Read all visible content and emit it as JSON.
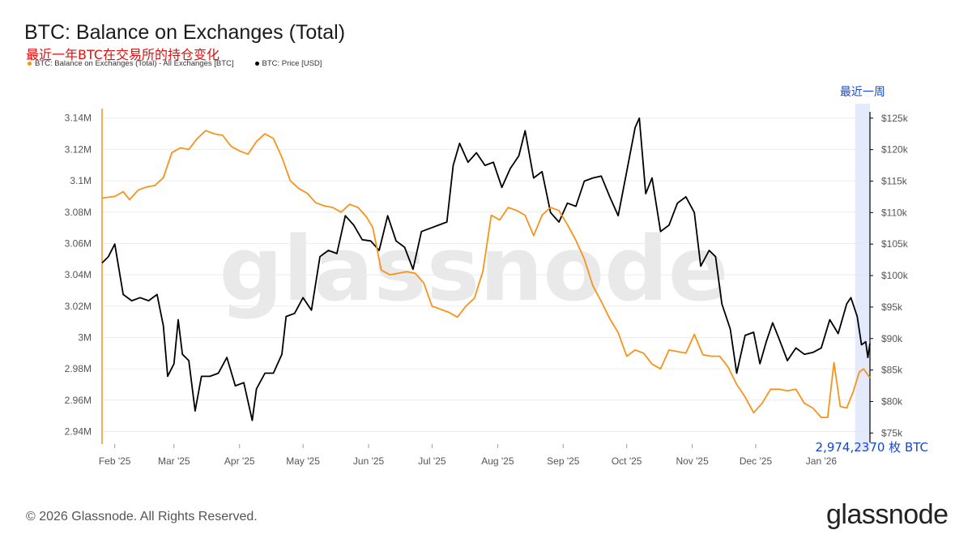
{
  "header": {
    "title": "BTC: Balance on Exchanges (Total)",
    "subtitle": "最近一年BTC在交易所的持仓变化"
  },
  "legend": [
    {
      "label": "BTC: Balance on Exchanges (Total) - All Exchanges [BTC]",
      "color": "#f7931a"
    },
    {
      "label": "BTC: Price [USD]",
      "color": "#000000"
    }
  ],
  "annotations": {
    "week_label": "最近一周",
    "latest_balance": "2,974,2370 枚 BTC",
    "watermark": "glassnode"
  },
  "footer": {
    "copyright": "© 2026 Glassnode. All Rights Reserved.",
    "brand": "glassnode"
  },
  "chart_data": {
    "type": "line",
    "title": "BTC: Balance on Exchanges (Total)",
    "x_tick_labels": [
      "Feb '25",
      "Mar '25",
      "Apr '25",
      "May '25",
      "Jun '25",
      "Jul '25",
      "Aug '25",
      "Sep '25",
      "Oct '25",
      "Nov '25",
      "Dec '25",
      "Jan '26"
    ],
    "y_left_tick_labels": [
      "3.14M",
      "3.12M",
      "3.1M",
      "3.08M",
      "3.06M",
      "3.04M",
      "3.02M",
      "3M",
      "2.98M",
      "2.96M",
      "2.94M"
    ],
    "y_left_ticks": [
      3140000,
      3120000,
      3100000,
      3080000,
      3060000,
      3040000,
      3020000,
      3000000,
      2980000,
      2960000,
      2940000
    ],
    "y_left_range": [
      2933000,
      3144000
    ],
    "y_right_tick_labels": [
      "$125k",
      "$120k",
      "$115k",
      "$110k",
      "$105k",
      "$100k",
      "$95k",
      "$90k",
      "$85k",
      "$80k",
      "$75k"
    ],
    "y_right_ticks": [
      125000,
      120000,
      115000,
      110000,
      105000,
      100000,
      95000,
      90000,
      85000,
      80000,
      75000
    ],
    "y_right_range": [
      73500,
      126000
    ],
    "x_range": [
      "2025-01-26",
      "2026-01-24"
    ],
    "highlight_range": [
      "2026-01-17",
      "2026-01-24"
    ],
    "series": [
      {
        "name": "BTC: Balance on Exchanges (Total) - All Exchanges [BTC]",
        "axis": "left",
        "color": "#f7931a",
        "points": [
          [
            "2025-01-26",
            3089000
          ],
          [
            "2025-02-01",
            3090000
          ],
          [
            "2025-02-05",
            3093000
          ],
          [
            "2025-02-08",
            3088000
          ],
          [
            "2025-02-12",
            3094000
          ],
          [
            "2025-02-16",
            3096000
          ],
          [
            "2025-02-20",
            3097000
          ],
          [
            "2025-02-24",
            3102000
          ],
          [
            "2025-02-28",
            3118000
          ],
          [
            "2025-03-04",
            3121000
          ],
          [
            "2025-03-08",
            3120000
          ],
          [
            "2025-03-12",
            3127000
          ],
          [
            "2025-03-16",
            3132000
          ],
          [
            "2025-03-20",
            3130000
          ],
          [
            "2025-03-24",
            3129000
          ],
          [
            "2025-03-28",
            3122000
          ],
          [
            "2025-04-01",
            3119000
          ],
          [
            "2025-04-05",
            3117000
          ],
          [
            "2025-04-09",
            3125000
          ],
          [
            "2025-04-13",
            3130000
          ],
          [
            "2025-04-17",
            3127000
          ],
          [
            "2025-04-21",
            3115000
          ],
          [
            "2025-04-25",
            3100000
          ],
          [
            "2025-04-29",
            3095000
          ],
          [
            "2025-05-03",
            3092000
          ],
          [
            "2025-05-07",
            3086000
          ],
          [
            "2025-05-11",
            3084000
          ],
          [
            "2025-05-15",
            3083000
          ],
          [
            "2025-05-19",
            3080000
          ],
          [
            "2025-05-23",
            3085000
          ],
          [
            "2025-05-27",
            3083000
          ],
          [
            "2025-05-31",
            3077000
          ],
          [
            "2025-06-03",
            3070000
          ],
          [
            "2025-06-07",
            3043000
          ],
          [
            "2025-06-11",
            3040000
          ],
          [
            "2025-06-15",
            3041000
          ],
          [
            "2025-06-19",
            3042000
          ],
          [
            "2025-06-23",
            3041000
          ],
          [
            "2025-06-27",
            3035000
          ],
          [
            "2025-07-01",
            3020000
          ],
          [
            "2025-07-05",
            3018000
          ],
          [
            "2025-07-09",
            3016000
          ],
          [
            "2025-07-13",
            3013000
          ],
          [
            "2025-07-17",
            3020000
          ],
          [
            "2025-07-21",
            3025000
          ],
          [
            "2025-07-25",
            3042000
          ],
          [
            "2025-07-29",
            3078000
          ],
          [
            "2025-08-02",
            3075000
          ],
          [
            "2025-08-06",
            3083000
          ],
          [
            "2025-08-10",
            3081000
          ],
          [
            "2025-08-14",
            3078000
          ],
          [
            "2025-08-18",
            3065000
          ],
          [
            "2025-08-22",
            3078000
          ],
          [
            "2025-08-26",
            3083000
          ],
          [
            "2025-08-30",
            3081000
          ],
          [
            "2025-09-03",
            3072000
          ],
          [
            "2025-09-07",
            3062000
          ],
          [
            "2025-09-11",
            3050000
          ],
          [
            "2025-09-15",
            3033000
          ],
          [
            "2025-09-19",
            3023000
          ],
          [
            "2025-09-23",
            3012000
          ],
          [
            "2025-09-27",
            3003000
          ],
          [
            "2025-10-01",
            2988000
          ],
          [
            "2025-10-05",
            2992000
          ],
          [
            "2025-10-09",
            2990000
          ],
          [
            "2025-10-13",
            2983000
          ],
          [
            "2025-10-17",
            2980000
          ],
          [
            "2025-10-21",
            2992000
          ],
          [
            "2025-10-25",
            2991000
          ],
          [
            "2025-10-29",
            2990000
          ],
          [
            "2025-11-02",
            3002000
          ],
          [
            "2025-11-06",
            2989000
          ],
          [
            "2025-11-10",
            2988000
          ],
          [
            "2025-11-14",
            2988000
          ],
          [
            "2025-11-18",
            2981000
          ],
          [
            "2025-11-22",
            2970000
          ],
          [
            "2025-11-26",
            2962000
          ],
          [
            "2025-11-30",
            2952000
          ],
          [
            "2025-12-04",
            2958000
          ],
          [
            "2025-12-08",
            2967000
          ],
          [
            "2025-12-12",
            2967000
          ],
          [
            "2025-12-16",
            2966000
          ],
          [
            "2025-12-20",
            2967000
          ],
          [
            "2025-12-24",
            2958000
          ],
          [
            "2025-12-28",
            2955000
          ],
          [
            "2026-01-01",
            2949000
          ],
          [
            "2026-01-04",
            2949000
          ],
          [
            "2026-01-07",
            2984000
          ],
          [
            "2026-01-10",
            2956000
          ],
          [
            "2026-01-13",
            2955000
          ],
          [
            "2026-01-16",
            2965000
          ],
          [
            "2026-01-19",
            2978000
          ],
          [
            "2026-01-21",
            2980000
          ],
          [
            "2026-01-24",
            2974237
          ]
        ]
      },
      {
        "name": "BTC: Price [USD]",
        "axis": "right",
        "color": "#000000",
        "points": [
          [
            "2025-01-26",
            102000
          ],
          [
            "2025-01-29",
            103000
          ],
          [
            "2025-02-01",
            105000
          ],
          [
            "2025-02-05",
            97000
          ],
          [
            "2025-02-09",
            96000
          ],
          [
            "2025-02-13",
            96500
          ],
          [
            "2025-02-17",
            96000
          ],
          [
            "2025-02-21",
            97000
          ],
          [
            "2025-02-24",
            92000
          ],
          [
            "2025-02-26",
            84000
          ],
          [
            "2025-03-01",
            86000
          ],
          [
            "2025-03-03",
            93000
          ],
          [
            "2025-03-05",
            87500
          ],
          [
            "2025-03-08",
            86500
          ],
          [
            "2025-03-11",
            78500
          ],
          [
            "2025-03-14",
            84000
          ],
          [
            "2025-03-18",
            84000
          ],
          [
            "2025-03-22",
            84500
          ],
          [
            "2025-03-26",
            87000
          ],
          [
            "2025-03-30",
            82500
          ],
          [
            "2025-04-03",
            83000
          ],
          [
            "2025-04-07",
            77000
          ],
          [
            "2025-04-09",
            82000
          ],
          [
            "2025-04-13",
            84500
          ],
          [
            "2025-04-17",
            84500
          ],
          [
            "2025-04-21",
            87500
          ],
          [
            "2025-04-23",
            93500
          ],
          [
            "2025-04-27",
            94000
          ],
          [
            "2025-05-01",
            96500
          ],
          [
            "2025-05-05",
            94500
          ],
          [
            "2025-05-09",
            103000
          ],
          [
            "2025-05-13",
            104000
          ],
          [
            "2025-05-17",
            103500
          ],
          [
            "2025-05-21",
            109500
          ],
          [
            "2025-05-25",
            108000
          ],
          [
            "2025-05-29",
            105700
          ],
          [
            "2025-06-02",
            105500
          ],
          [
            "2025-06-06",
            104000
          ],
          [
            "2025-06-10",
            109500
          ],
          [
            "2025-06-14",
            105500
          ],
          [
            "2025-06-18",
            104500
          ],
          [
            "2025-06-22",
            101000
          ],
          [
            "2025-06-26",
            107000
          ],
          [
            "2025-06-30",
            107500
          ],
          [
            "2025-07-04",
            108000
          ],
          [
            "2025-07-08",
            108500
          ],
          [
            "2025-07-11",
            117500
          ],
          [
            "2025-07-14",
            121000
          ],
          [
            "2025-07-18",
            118000
          ],
          [
            "2025-07-22",
            119500
          ],
          [
            "2025-07-26",
            117500
          ],
          [
            "2025-07-30",
            118000
          ],
          [
            "2025-08-03",
            114000
          ],
          [
            "2025-08-07",
            117000
          ],
          [
            "2025-08-11",
            119000
          ],
          [
            "2025-08-14",
            123000
          ],
          [
            "2025-08-18",
            115500
          ],
          [
            "2025-08-22",
            116500
          ],
          [
            "2025-08-26",
            110000
          ],
          [
            "2025-08-30",
            108500
          ],
          [
            "2025-09-03",
            111500
          ],
          [
            "2025-09-07",
            111000
          ],
          [
            "2025-09-11",
            115000
          ],
          [
            "2025-09-15",
            115500
          ],
          [
            "2025-09-19",
            115800
          ],
          [
            "2025-09-23",
            112500
          ],
          [
            "2025-09-27",
            109500
          ],
          [
            "2025-10-01",
            116500
          ],
          [
            "2025-10-05",
            123500
          ],
          [
            "2025-10-07",
            125000
          ],
          [
            "2025-10-10",
            113000
          ],
          [
            "2025-10-13",
            115500
          ],
          [
            "2025-10-17",
            107000
          ],
          [
            "2025-10-21",
            108000
          ],
          [
            "2025-10-25",
            111500
          ],
          [
            "2025-10-29",
            112500
          ],
          [
            "2025-11-02",
            110000
          ],
          [
            "2025-11-05",
            101500
          ],
          [
            "2025-11-09",
            104000
          ],
          [
            "2025-11-12",
            103000
          ],
          [
            "2025-11-15",
            95500
          ],
          [
            "2025-11-19",
            91500
          ],
          [
            "2025-11-22",
            84500
          ],
          [
            "2025-11-26",
            90500
          ],
          [
            "2025-11-30",
            91000
          ],
          [
            "2025-12-03",
            86000
          ],
          [
            "2025-12-06",
            89500
          ],
          [
            "2025-12-09",
            92500
          ],
          [
            "2025-12-12",
            90000
          ],
          [
            "2025-12-16",
            86500
          ],
          [
            "2025-12-20",
            88500
          ],
          [
            "2025-12-24",
            87500
          ],
          [
            "2025-12-28",
            87800
          ],
          [
            "2026-01-01",
            88500
          ],
          [
            "2026-01-05",
            93000
          ],
          [
            "2026-01-09",
            90800
          ],
          [
            "2026-01-13",
            95500
          ],
          [
            "2026-01-15",
            96500
          ],
          [
            "2026-01-18",
            93500
          ],
          [
            "2026-01-20",
            89000
          ],
          [
            "2026-01-22",
            89500
          ],
          [
            "2026-01-23",
            87000
          ],
          [
            "2026-01-24",
            89200
          ]
        ]
      }
    ]
  }
}
